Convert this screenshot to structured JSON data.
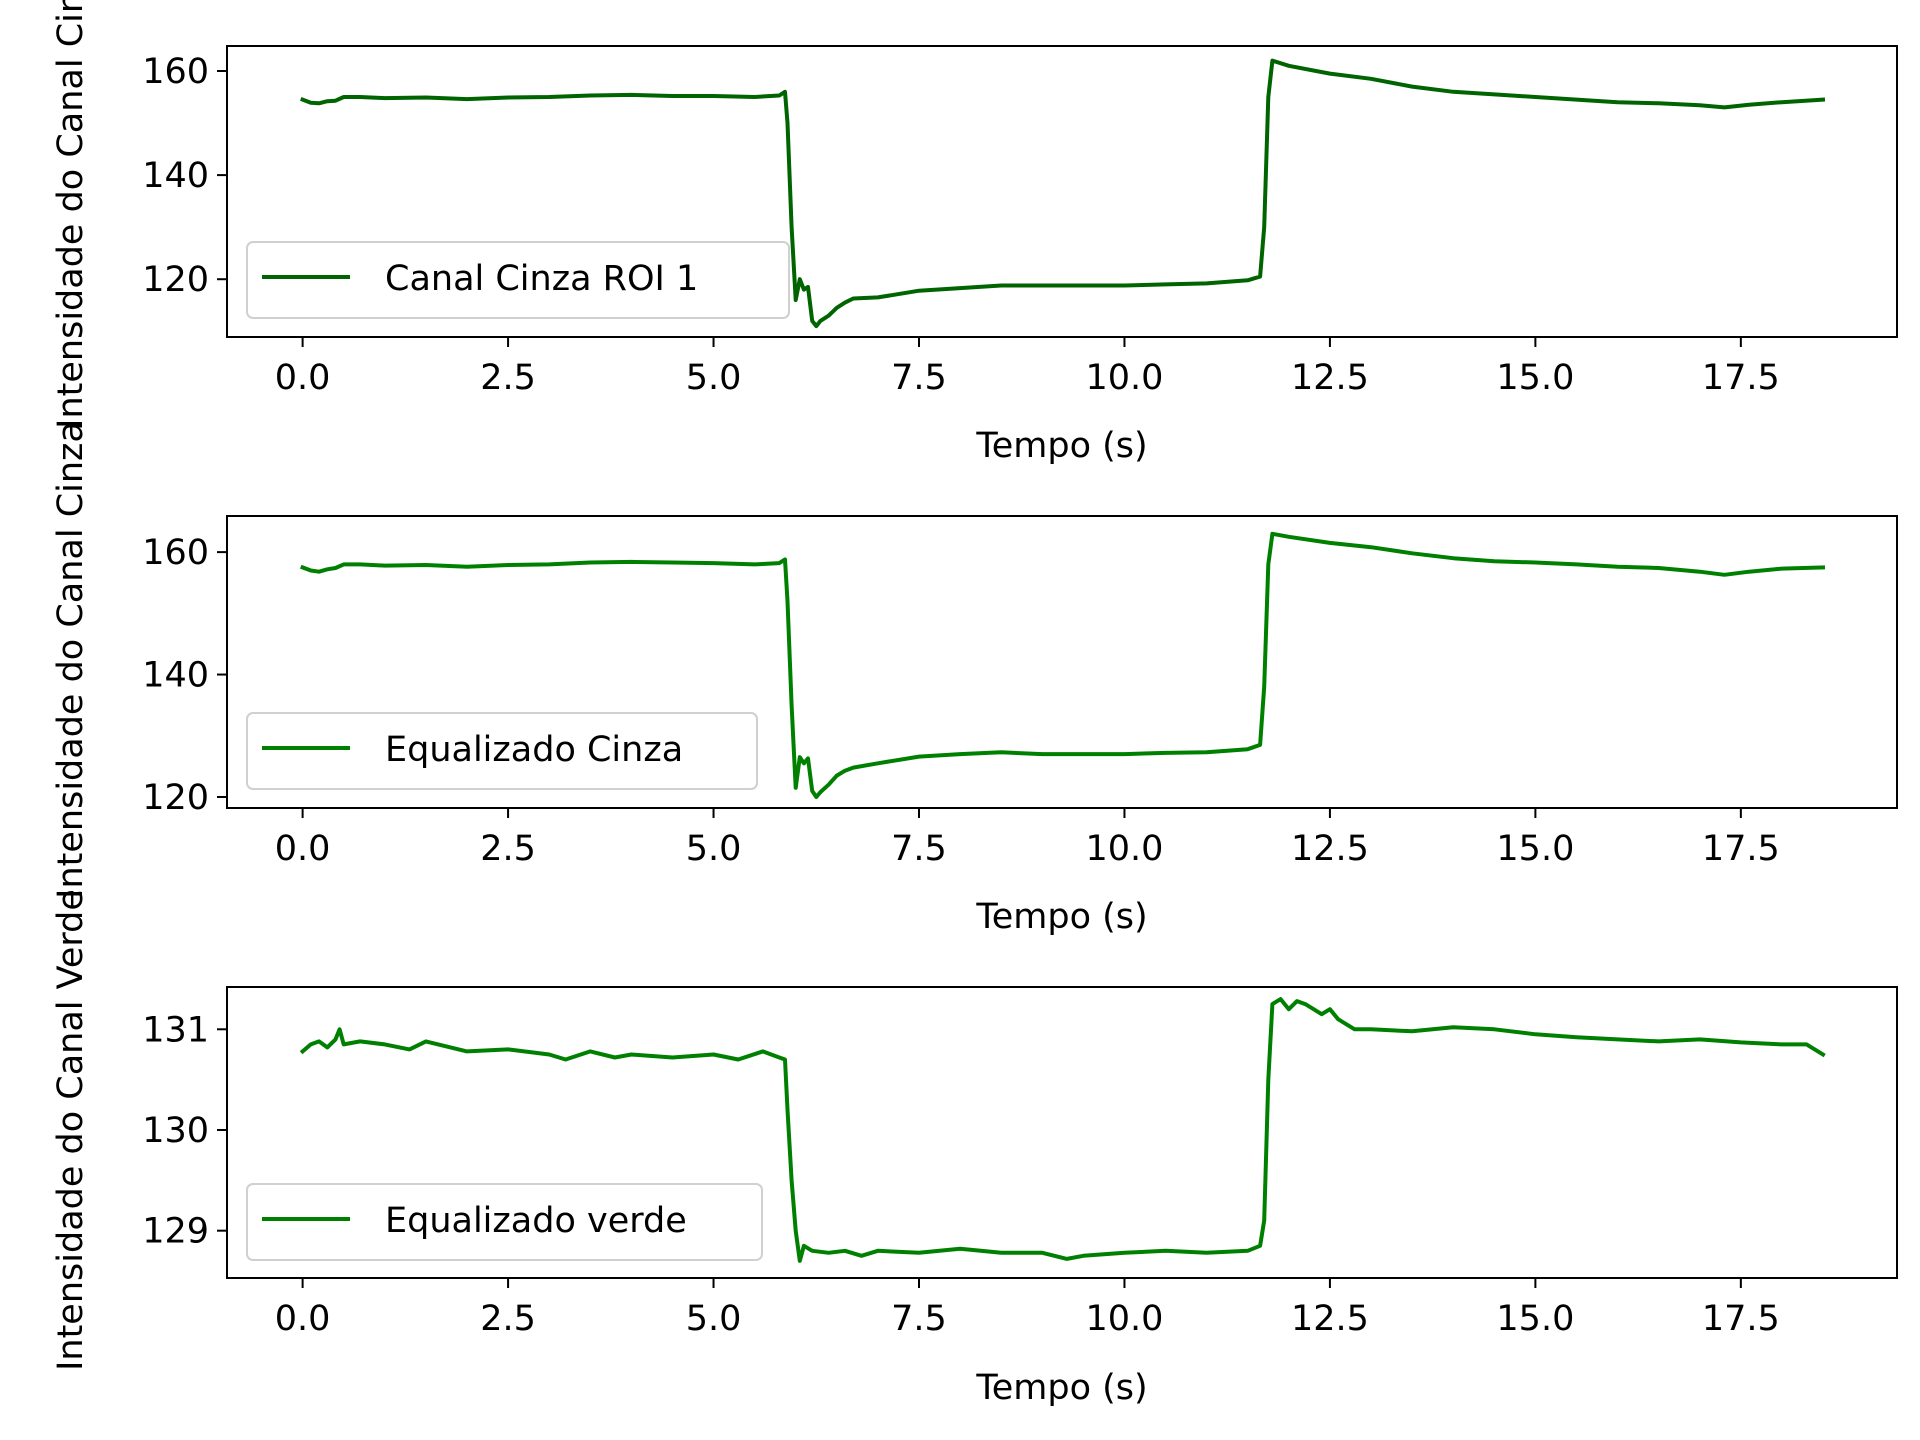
{
  "chart_data": [
    {
      "type": "line",
      "xlabel": "Tempo (s)",
      "ylabel": "Intensidade do Canal Cinza",
      "xlim": [
        -0.92,
        19.4
      ],
      "ylim": [
        108.9,
        164.8
      ],
      "xticks": [
        0.0,
        2.5,
        5.0,
        7.5,
        10.0,
        12.5,
        15.0,
        17.5
      ],
      "xtick_labels": [
        "0.0",
        "2.5",
        "5.0",
        "7.5",
        "10.0",
        "12.5",
        "15.0",
        "17.5"
      ],
      "yticks": [
        120,
        140,
        160
      ],
      "ytick_labels": [
        "120",
        "140",
        "160"
      ],
      "legend_position": "lower left",
      "grid": false,
      "series": [
        {
          "name": "Canal Cinza ROI 1",
          "color": "#006400",
          "x": [
            0.0,
            0.1,
            0.2,
            0.3,
            0.4,
            0.5,
            0.7,
            1.0,
            1.5,
            2.0,
            2.5,
            3.0,
            3.5,
            4.0,
            4.5,
            5.0,
            5.5,
            5.8,
            5.87,
            5.9,
            5.95,
            6.0,
            6.05,
            6.1,
            6.15,
            6.2,
            6.25,
            6.3,
            6.4,
            6.5,
            6.6,
            6.7,
            7.0,
            7.5,
            8.0,
            8.5,
            9.0,
            9.5,
            10.0,
            10.5,
            11.0,
            11.5,
            11.65,
            11.7,
            11.75,
            11.8,
            12.0,
            12.5,
            13.0,
            13.5,
            14.0,
            14.5,
            15.0,
            15.5,
            16.0,
            16.5,
            17.0,
            17.3,
            17.6,
            18.0,
            18.5
          ],
          "y": [
            154.5,
            153.9,
            153.8,
            154.2,
            154.3,
            155.0,
            155.0,
            154.8,
            154.9,
            154.6,
            154.9,
            155.0,
            155.3,
            155.4,
            155.2,
            155.2,
            155.0,
            155.3,
            156.0,
            150.0,
            130.0,
            116.0,
            120.0,
            118.0,
            118.5,
            112.0,
            111.0,
            112.0,
            113.0,
            114.5,
            115.5,
            116.3,
            116.5,
            117.8,
            118.3,
            118.8,
            118.8,
            118.8,
            118.8,
            119.0,
            119.2,
            119.8,
            120.5,
            130.0,
            155.0,
            162.0,
            161.0,
            159.5,
            158.5,
            157.0,
            156.0,
            155.5,
            155.0,
            154.5,
            154.0,
            153.8,
            153.4,
            153.0,
            153.5,
            154.0,
            154.5
          ]
        }
      ]
    },
    {
      "type": "line",
      "xlabel": "Tempo (s)",
      "ylabel": "Intensidade do Canal Cinza",
      "xlim": [
        -0.92,
        19.4
      ],
      "ylim": [
        118.2,
        165.9
      ],
      "xticks": [
        0.0,
        2.5,
        5.0,
        7.5,
        10.0,
        12.5,
        15.0,
        17.5
      ],
      "xtick_labels": [
        "0.0",
        "2.5",
        "5.0",
        "7.5",
        "10.0",
        "12.5",
        "15.0",
        "17.5"
      ],
      "yticks": [
        120,
        140,
        160
      ],
      "ytick_labels": [
        "120",
        "140",
        "160"
      ],
      "legend_position": "lower left",
      "grid": false,
      "series": [
        {
          "name": "Equalizado Cinza",
          "color": "#008000",
          "x": [
            0.0,
            0.1,
            0.2,
            0.3,
            0.4,
            0.5,
            0.7,
            1.0,
            1.5,
            2.0,
            2.5,
            3.0,
            3.5,
            4.0,
            4.5,
            5.0,
            5.5,
            5.8,
            5.87,
            5.9,
            5.95,
            6.0,
            6.05,
            6.1,
            6.15,
            6.2,
            6.25,
            6.3,
            6.4,
            6.5,
            6.6,
            6.7,
            7.0,
            7.5,
            8.0,
            8.5,
            9.0,
            9.5,
            10.0,
            10.5,
            11.0,
            11.5,
            11.65,
            11.7,
            11.75,
            11.8,
            12.0,
            12.5,
            13.0,
            13.5,
            14.0,
            14.5,
            15.0,
            15.5,
            16.0,
            16.5,
            17.0,
            17.3,
            17.6,
            18.0,
            18.5
          ],
          "y": [
            157.5,
            157.0,
            156.8,
            157.2,
            157.4,
            158.0,
            158.0,
            157.8,
            157.9,
            157.6,
            157.9,
            158.0,
            158.3,
            158.4,
            158.3,
            158.2,
            158.0,
            158.2,
            158.8,
            152.0,
            135.0,
            121.5,
            126.5,
            125.5,
            126.3,
            121.0,
            120.0,
            120.8,
            122.0,
            123.5,
            124.3,
            124.8,
            125.5,
            126.6,
            127.0,
            127.3,
            127.0,
            127.0,
            127.0,
            127.2,
            127.3,
            127.8,
            128.5,
            138.0,
            158.0,
            163.0,
            162.5,
            161.5,
            160.8,
            159.8,
            159.0,
            158.5,
            158.3,
            158.0,
            157.6,
            157.4,
            156.8,
            156.3,
            156.8,
            157.3,
            157.5
          ]
        }
      ]
    },
    {
      "type": "line",
      "xlabel": "Tempo (s)",
      "ylabel": "Intensidade do Canal Verde",
      "xlim": [
        -0.92,
        19.4
      ],
      "ylim": [
        128.53,
        131.42
      ],
      "xticks": [
        0.0,
        2.5,
        5.0,
        7.5,
        10.0,
        12.5,
        15.0,
        17.5
      ],
      "xtick_labels": [
        "0.0",
        "2.5",
        "5.0",
        "7.5",
        "10.0",
        "12.5",
        "15.0",
        "17.5"
      ],
      "yticks": [
        129,
        130,
        131
      ],
      "ytick_labels": [
        "129",
        "130",
        "131"
      ],
      "legend_position": "lower left",
      "grid": false,
      "series": [
        {
          "name": "Equalizado verde",
          "color": "#008000",
          "x": [
            0.0,
            0.1,
            0.2,
            0.3,
            0.4,
            0.45,
            0.5,
            0.7,
            1.0,
            1.3,
            1.5,
            1.8,
            2.0,
            2.5,
            3.0,
            3.2,
            3.5,
            3.8,
            4.0,
            4.5,
            5.0,
            5.3,
            5.6,
            5.8,
            5.87,
            5.9,
            5.95,
            6.0,
            6.05,
            6.1,
            6.2,
            6.4,
            6.6,
            6.8,
            7.0,
            7.5,
            8.0,
            8.5,
            9.0,
            9.3,
            9.5,
            10.0,
            10.5,
            11.0,
            11.5,
            11.65,
            11.7,
            11.75,
            11.8,
            11.9,
            12.0,
            12.1,
            12.2,
            12.4,
            12.5,
            12.6,
            12.8,
            13.0,
            13.5,
            14.0,
            14.5,
            15.0,
            15.5,
            16.0,
            16.5,
            17.0,
            17.5,
            18.0,
            18.3,
            18.5
          ],
          "y": [
            130.78,
            130.85,
            130.88,
            130.82,
            130.9,
            131.0,
            130.85,
            130.88,
            130.85,
            130.8,
            130.88,
            130.82,
            130.78,
            130.8,
            130.75,
            130.7,
            130.78,
            130.72,
            130.75,
            130.72,
            130.75,
            130.7,
            130.78,
            130.72,
            130.7,
            130.2,
            129.5,
            129.0,
            128.7,
            128.85,
            128.8,
            128.78,
            128.8,
            128.75,
            128.8,
            128.78,
            128.82,
            128.78,
            128.78,
            128.72,
            128.75,
            128.78,
            128.8,
            128.78,
            128.8,
            128.85,
            129.1,
            130.5,
            131.25,
            131.3,
            131.2,
            131.28,
            131.25,
            131.15,
            131.2,
            131.1,
            131.0,
            131.0,
            130.98,
            131.02,
            131.0,
            130.95,
            130.92,
            130.9,
            130.88,
            130.9,
            130.87,
            130.85,
            130.85,
            130.75
          ]
        }
      ]
    }
  ]
}
